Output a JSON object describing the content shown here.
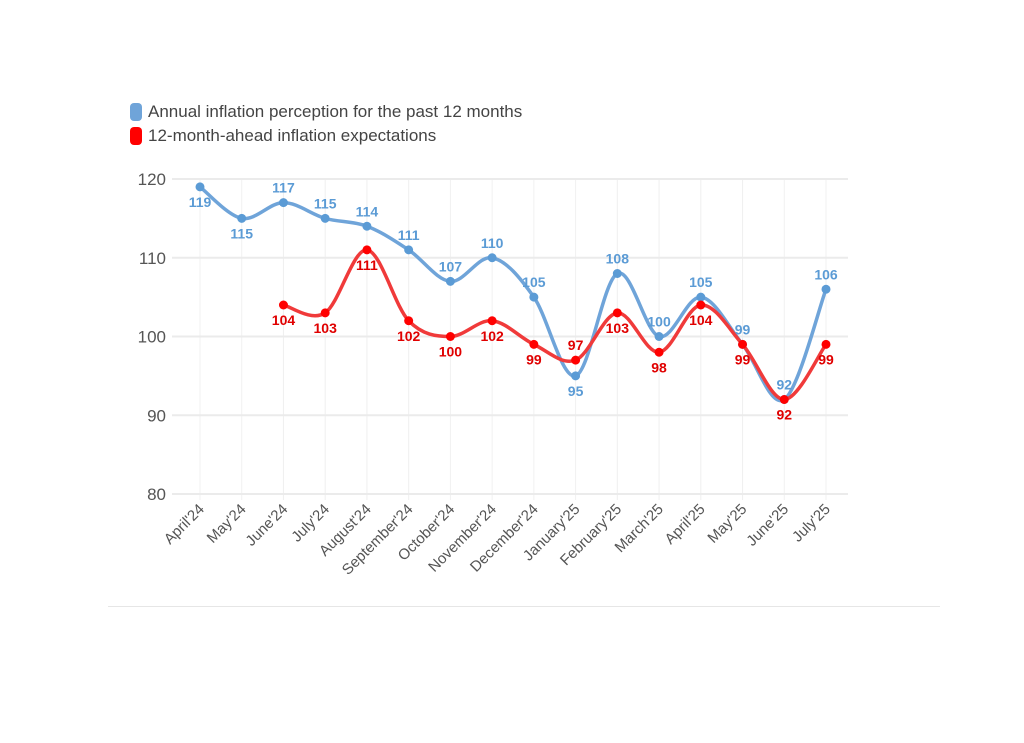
{
  "chart_data": {
    "type": "line",
    "title": "",
    "xlabel": "",
    "ylabel": "",
    "ylim": [
      80,
      120
    ],
    "yticks": [
      80,
      90,
      100,
      110,
      120
    ],
    "grid": true,
    "legend_position": "top-left",
    "categories": [
      "April'24",
      "May'24",
      "June'24",
      "July'24",
      "August'24",
      "September'24",
      "October'24",
      "November'24",
      "December'24",
      "January'25",
      "February'25",
      "March'25",
      "April'25",
      "May'25",
      "June'25",
      "July'25"
    ],
    "series": [
      {
        "name": "Annual inflation perception for the past 12 months",
        "color": "#6fa4d9",
        "values": [
          119,
          115,
          117,
          115,
          114,
          111,
          107,
          110,
          105,
          95,
          108,
          100,
          105,
          99,
          92,
          106
        ]
      },
      {
        "name": "12-month-ahead inflation expectations",
        "color": "#f03a3a",
        "values": [
          null,
          null,
          104,
          103,
          111,
          102,
          100,
          102,
          99,
          97,
          103,
          98,
          104,
          99,
          92,
          99
        ]
      }
    ]
  }
}
